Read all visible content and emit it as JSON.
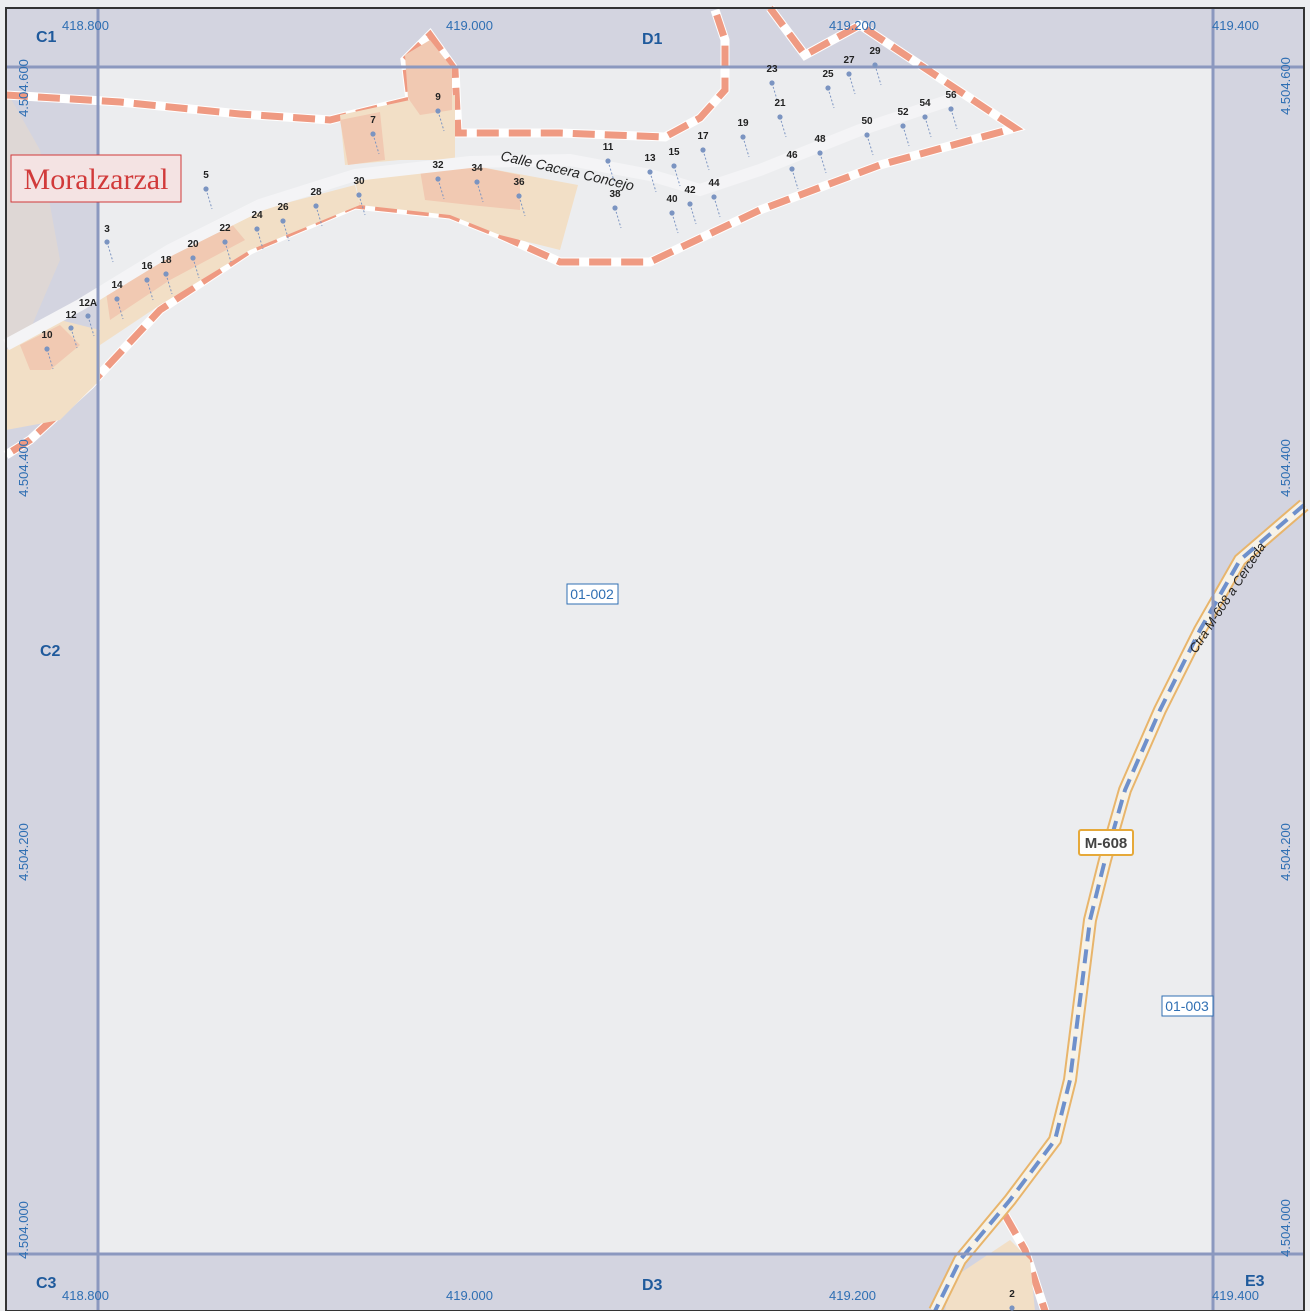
{
  "sheet": {
    "cells": {
      "c1": "C1",
      "d1": "D1",
      "c2": "C2",
      "c3": "C3",
      "d3": "D3",
      "e3": "E3"
    },
    "x_coords_top": [
      "418.800",
      "419.000",
      "419.200",
      "419.400"
    ],
    "x_coords_bottom": [
      "418.800",
      "419.000",
      "419.200",
      "419.400"
    ],
    "y_coords_left": [
      "4.504.600",
      "4.504.400",
      "4.504.200",
      "4.504.000"
    ],
    "y_coords_right": [
      "4.504.600",
      "4.504.400",
      "4.504.200",
      "4.504.000"
    ]
  },
  "map": {
    "municipality": "Moralzarzal",
    "street_name": "Calle Cacera Concejo",
    "road_name": "Ctra M-608 a Cerceda",
    "road_shield": "M-608",
    "sections": [
      "01-002",
      "01-003"
    ],
    "house_numbers": [
      "10",
      "12",
      "12A",
      "14",
      "16",
      "18",
      "20",
      "3",
      "5",
      "22",
      "24",
      "26",
      "28",
      "30",
      "7",
      "9",
      "32",
      "34",
      "36",
      "11",
      "13",
      "38",
      "15",
      "40",
      "42",
      "17",
      "44",
      "19",
      "23",
      "21",
      "46",
      "25",
      "48",
      "27",
      "29",
      "50",
      "52",
      "54",
      "56",
      "2"
    ]
  },
  "colors": {
    "background": "#ecedef",
    "frame_band": "#d3d4e0",
    "grid_line": "#8b98bf",
    "coord_text": "#2f6fb3",
    "cell_text": "#1f5a9c",
    "boundary": "#ef9a82",
    "building": "#f1c9b2",
    "lot": "#f2dfc6",
    "road_edge": "#e8b56c",
    "road_fill": "#f6f2e8",
    "road_dash": "#6e90cc",
    "shield": "#e6a93a",
    "town_label": "#d13a3a",
    "number_text": "#222222",
    "address_dot": "#7b94c1"
  }
}
